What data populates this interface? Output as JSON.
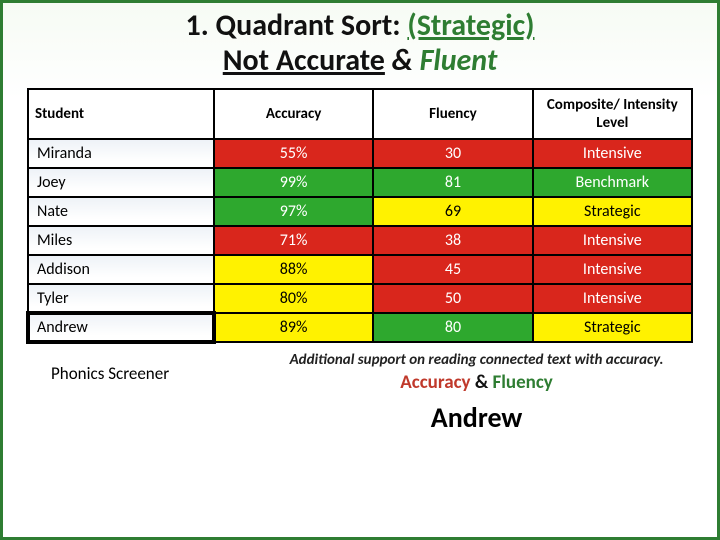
{
  "title": {
    "prefix": "1. Quadrant Sort: ",
    "strategic": "(Strategic)",
    "not_accurate": "Not Accurate",
    "amp": " & ",
    "fluent": "Fluent"
  },
  "colors": {
    "red": "#d9261c",
    "green": "#2ea82e",
    "yellow": "#fff200",
    "white": "#ffffff",
    "header_bg": "#ffffff"
  },
  "table": {
    "columns": [
      "Student",
      "Accuracy",
      "Fluency",
      "Composite/ Intensity Level"
    ],
    "rows": [
      {
        "name": "Miranda",
        "accuracy": {
          "text": "55%",
          "bg": "red",
          "fg": "#fff"
        },
        "fluency": {
          "text": "30",
          "bg": "red",
          "fg": "#fff"
        },
        "level": {
          "text": "Intensive",
          "bg": "red",
          "fg": "#fff"
        }
      },
      {
        "name": "Joey",
        "accuracy": {
          "text": "99%",
          "bg": "green",
          "fg": "#fff"
        },
        "fluency": {
          "text": "81",
          "bg": "green",
          "fg": "#fff"
        },
        "level": {
          "text": "Benchmark",
          "bg": "green",
          "fg": "#fff"
        }
      },
      {
        "name": "Nate",
        "accuracy": {
          "text": "97%",
          "bg": "green",
          "fg": "#fff"
        },
        "fluency": {
          "text": "69",
          "bg": "yellow",
          "fg": "#000"
        },
        "level": {
          "text": "Strategic",
          "bg": "yellow",
          "fg": "#000"
        }
      },
      {
        "name": "Miles",
        "accuracy": {
          "text": "71%",
          "bg": "red",
          "fg": "#fff"
        },
        "fluency": {
          "text": "38",
          "bg": "red",
          "fg": "#fff"
        },
        "level": {
          "text": "Intensive",
          "bg": "red",
          "fg": "#fff"
        }
      },
      {
        "name": "Addison",
        "accuracy": {
          "text": "88%",
          "bg": "yellow",
          "fg": "#000"
        },
        "fluency": {
          "text": "45",
          "bg": "red",
          "fg": "#fff"
        },
        "level": {
          "text": "Intensive",
          "bg": "red",
          "fg": "#fff"
        }
      },
      {
        "name": "Tyler",
        "accuracy": {
          "text": "80%",
          "bg": "yellow",
          "fg": "#000"
        },
        "fluency": {
          "text": "50",
          "bg": "red",
          "fg": "#fff"
        },
        "level": {
          "text": "Intensive",
          "bg": "red",
          "fg": "#fff"
        }
      },
      {
        "name": "Andrew",
        "highlight": true,
        "accuracy": {
          "text": "89%",
          "bg": "yellow",
          "fg": "#000"
        },
        "fluency": {
          "text": "80",
          "bg": "green",
          "fg": "#fff"
        },
        "level": {
          "text": "Strategic",
          "bg": "yellow",
          "fg": "#000"
        }
      }
    ]
  },
  "footer": {
    "phonics": "Phonics Screener",
    "note": "Additional support on reading connected text with accuracy.",
    "af": {
      "accuracy": "Accuracy",
      "amp": " & ",
      "fluency": "Fluency"
    },
    "andrew": "Andrew"
  }
}
